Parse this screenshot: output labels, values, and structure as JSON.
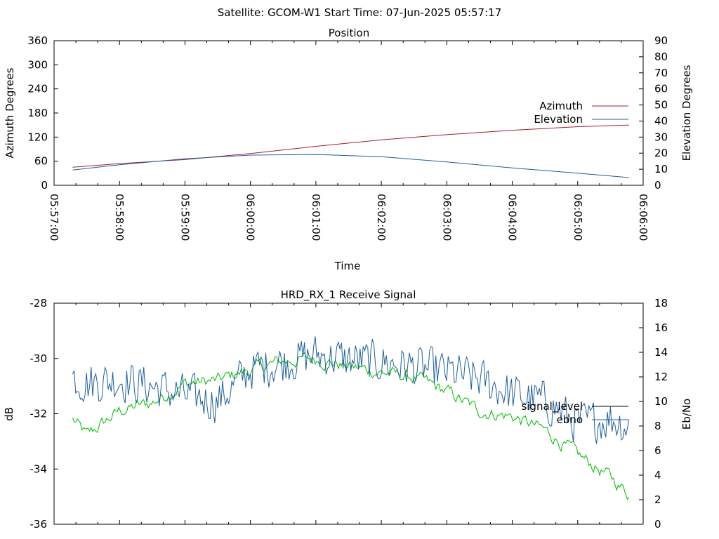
{
  "header": {
    "title": "Satellite: GCOM-W1    Start Time: 07-Jun-2025 05:57:17"
  },
  "chart_data": [
    {
      "type": "line",
      "title": "Position",
      "xlabel": "Time",
      "ylabel": "Azimuth Degrees",
      "y2label": "Elevation Degrees",
      "x_ticks": [
        "05:57:00",
        "05:58:00",
        "05:59:00",
        "06:00:00",
        "06:01:00",
        "06:02:00",
        "06:03:00",
        "06:04:00",
        "06:05:00",
        "06:06:00"
      ],
      "x_range": [
        "05:57:00",
        "06:06:00"
      ],
      "ylim": [
        0,
        360
      ],
      "y_ticks": [
        "0",
        "60",
        "120",
        "180",
        "240",
        "300",
        "360"
      ],
      "y2lim": [
        0,
        90
      ],
      "y2_ticks": [
        "0",
        "10",
        "20",
        "30",
        "40",
        "50",
        "60",
        "70",
        "80",
        "90"
      ],
      "legend_position": "right",
      "series": [
        {
          "name": "Azimuth",
          "axis": "left",
          "color": "#a0202a",
          "x": [
            "05:57:17",
            "05:58:00",
            "05:59:00",
            "06:00:00",
            "06:01:00",
            "06:02:00",
            "06:03:00",
            "06:04:00",
            "06:05:00",
            "06:05:47"
          ],
          "y": [
            45,
            54,
            64,
            79,
            97,
            113,
            126,
            137,
            146,
            150
          ]
        },
        {
          "name": "Elevation",
          "axis": "right",
          "color": "#1f5f99",
          "x": [
            "05:57:17",
            "05:58:00",
            "05:59:00",
            "06:00:00",
            "06:01:00",
            "06:02:00",
            "06:03:00",
            "06:04:00",
            "06:05:00",
            "06:05:47"
          ],
          "y": [
            9.5,
            12.8,
            16.5,
            18.8,
            19.2,
            17.8,
            14.5,
            10.8,
            7.5,
            4.8
          ]
        }
      ]
    },
    {
      "type": "line",
      "title": "HRD_RX_1 Receive Signal",
      "xlabel": "",
      "ylabel": "dB",
      "y2label": "Eb/No",
      "ylim": [
        -36,
        -28
      ],
      "y_ticks": [
        "-36",
        "-34",
        "-32",
        "-30",
        "-28"
      ],
      "y2lim": [
        0,
        18
      ],
      "y2_ticks": [
        "0",
        "2",
        "4",
        "6",
        "8",
        "10",
        "12",
        "14",
        "16",
        "18"
      ],
      "legend_position": "right",
      "series": [
        {
          "name": "signal_level",
          "axis": "left",
          "color": "#00b800",
          "legend_color": "#000000",
          "x": [
            "05:57:17",
            "05:57:30",
            "05:58:00",
            "05:58:30",
            "05:59:00",
            "05:59:30",
            "06:00:00",
            "06:00:30",
            "06:01:00",
            "06:01:30",
            "06:02:00",
            "06:02:30",
            "06:03:00",
            "06:03:30",
            "06:04:00",
            "06:04:30",
            "06:05:00",
            "06:05:30",
            "06:05:47"
          ],
          "y": [
            -32.2,
            -32.8,
            -31.9,
            -31.6,
            -30.9,
            -30.8,
            -30.4,
            -30.1,
            -30.0,
            -30.3,
            -30.5,
            -30.7,
            -31.2,
            -31.9,
            -32.1,
            -32.6,
            -33.5,
            -34.3,
            -34.9
          ]
        },
        {
          "name": "ebno",
          "axis": "right",
          "color": "#1f5f99",
          "x": [
            "05:57:17",
            "05:57:30",
            "05:58:00",
            "05:58:30",
            "05:59:00",
            "05:59:30",
            "06:00:00",
            "06:00:30",
            "06:01:00",
            "06:01:30",
            "06:02:00",
            "06:02:30",
            "06:03:00",
            "06:03:30",
            "06:04:00",
            "06:04:30",
            "06:05:00",
            "06:05:30",
            "06:05:47"
          ],
          "y": [
            12.0,
            11.5,
            11.8,
            11.2,
            10.5,
            10.0,
            12.6,
            13.2,
            13.8,
            13.4,
            13.2,
            12.8,
            12.4,
            11.8,
            10.6,
            10.0,
            8.2,
            8.6,
            8.0
          ]
        }
      ]
    }
  ]
}
